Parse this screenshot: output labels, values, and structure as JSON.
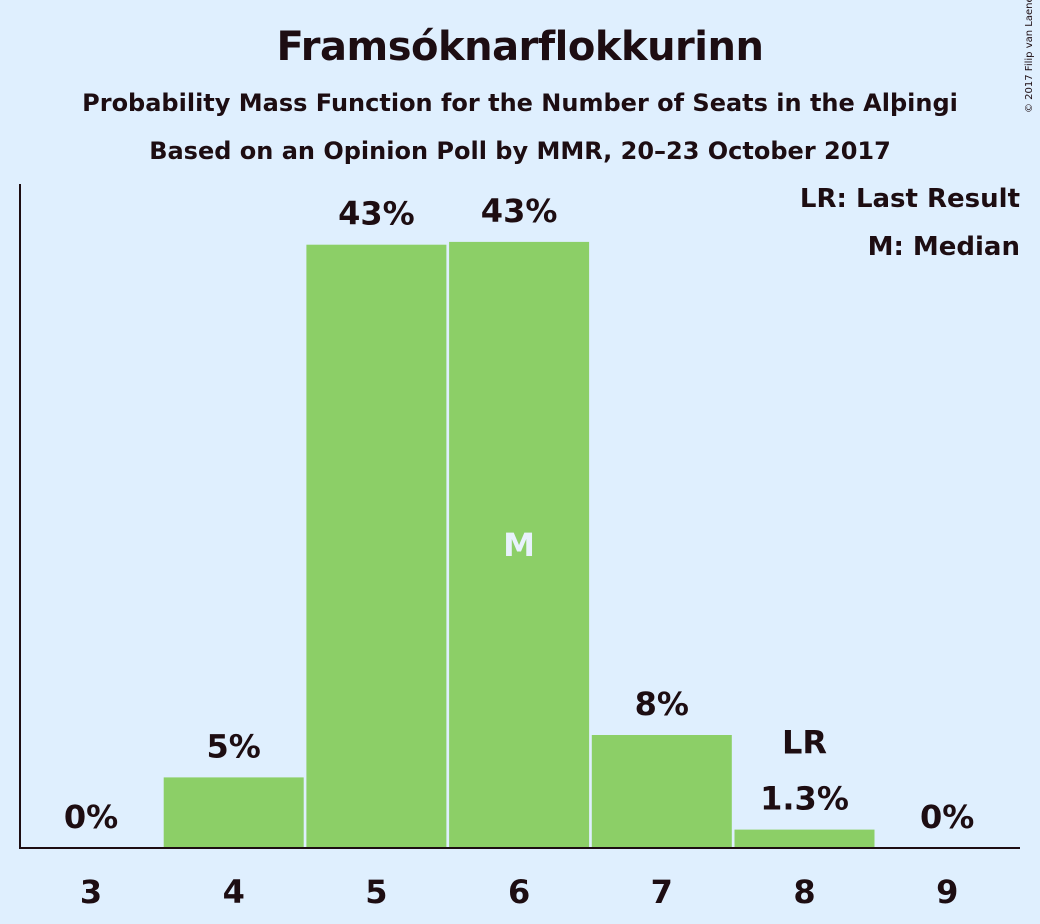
{
  "title": "Framsóknarflokkurinn",
  "subtitle": "Probability Mass Function for the Number of Seats in the Alþingi",
  "subtitle2": "Based on an Opinion Poll by MMR, 20–23 October 2017",
  "copyright": "© 2017 Filip van Laenen",
  "legend": {
    "last_result": "LR: Last Result",
    "median": "M: Median"
  },
  "colors": {
    "background": "#dfeffe",
    "bar": "#8ccf67",
    "text": "#1d0d12",
    "median_label": "#e8f2fc"
  },
  "chart_data": {
    "type": "bar",
    "title": "Framsóknarflokkurinn",
    "subtitle": "Probability Mass Function for the Number of Seats in the Alþingi",
    "categories": [
      "3",
      "4",
      "5",
      "6",
      "7",
      "8",
      "9"
    ],
    "values": [
      0,
      5,
      42.7,
      42.9,
      8,
      1.3,
      0
    ],
    "value_labels": [
      "0%",
      "5%",
      "43%",
      "43%",
      "8%",
      "1.3%",
      "0%"
    ],
    "markers": {
      "median": {
        "category": "6",
        "label": "M"
      },
      "last_result": {
        "category": "8",
        "label": "LR"
      }
    },
    "xlabel": "",
    "ylabel": "",
    "ylim": [
      0,
      47
    ],
    "grid": false,
    "legend_position": "top-right"
  }
}
